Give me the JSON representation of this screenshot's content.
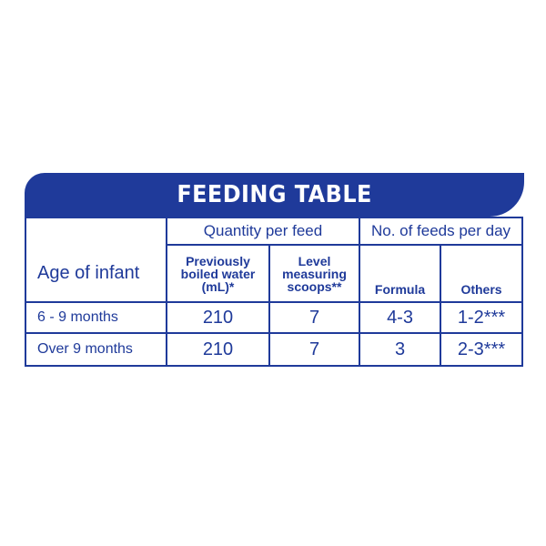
{
  "title": "FEEDING TABLE",
  "header": {
    "quantity_group": "Quantity per feed",
    "feeds_group": "No. of feeds per day",
    "age_label": "Age of infant",
    "water_label": "Previously boiled water (mL)*",
    "scoops_label": "Level measuring scoops**",
    "formula_label": "Formula",
    "others_label": "Others"
  },
  "rows": [
    {
      "age": "6 - 9 months",
      "water": "210",
      "scoops": "7",
      "formula": "4-3",
      "others": "1-2***"
    },
    {
      "age": "Over 9 months",
      "water": "210",
      "scoops": "7",
      "formula": "3",
      "others": "2-3***"
    }
  ],
  "colors": {
    "brand_blue": "#1f3a9a",
    "background": "#ffffff"
  }
}
